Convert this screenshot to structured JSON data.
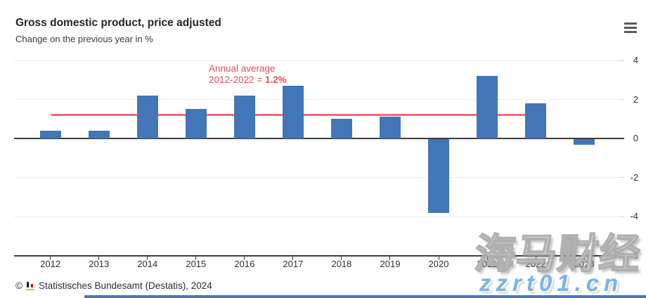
{
  "header": {
    "title": "Gross domestic product, price adjusted",
    "subtitle": "Change on the previous year in %"
  },
  "chart_data": {
    "type": "bar",
    "title": "Gross domestic product, price adjusted",
    "subtitle": "Change on the previous year in %",
    "categories": [
      "2012",
      "2013",
      "2014",
      "2015",
      "2016",
      "2017",
      "2018",
      "2019",
      "2020",
      "2021",
      "2022",
      "2023"
    ],
    "values": [
      0.4,
      0.4,
      2.2,
      1.5,
      2.2,
      2.7,
      1.0,
      1.1,
      -3.8,
      3.2,
      1.8,
      -0.3
    ],
    "unit": "%",
    "ylim": [
      -6,
      4
    ],
    "yticks": [
      4,
      2,
      0,
      -2,
      -4,
      -6
    ],
    "grid": true,
    "legend": false,
    "bar_color": "#4276b7",
    "axis_color": "#3c3c3e",
    "gridline_color": "#ebebeb",
    "average_line": {
      "value": 1.2,
      "span": [
        "2012",
        "2022"
      ],
      "color": "#f0697a",
      "annotation": {
        "line1": "Annual average",
        "line2_prefix": "2012-2022 = ",
        "line2_value": "1.2%",
        "color": "#ec4c5c"
      }
    }
  },
  "footer": {
    "copyright_symbol": "©",
    "source_text": "Statistisches Bundesamt (Destatis), 2024"
  },
  "watermark": {
    "cjk_text": "海马财经",
    "url_text": "zzrt01.cn",
    "url_color": "#7ab4e4"
  },
  "page": {
    "bottom_strip_color": "#4577b5"
  }
}
